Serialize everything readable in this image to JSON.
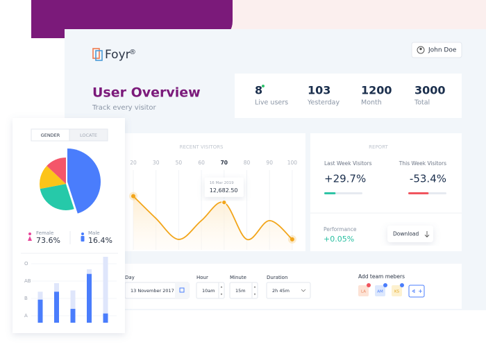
{
  "header": {
    "logo": "Foyr",
    "logo_mark": "®",
    "user": "John Doe"
  },
  "overview": {
    "title": "User Overview",
    "subtitle": "Track every visitor"
  },
  "stats": [
    {
      "value": 8,
      "label": "Live users"
    },
    {
      "value": 103,
      "label": "Yesterday"
    },
    {
      "value": 1200,
      "label": "Month"
    },
    {
      "value": 3000,
      "label": "Total"
    }
  ],
  "recent_visitors": {
    "type": "line",
    "title": "RECENT VISITORS",
    "categories": [
      "20",
      "30",
      "50",
      "60",
      "70",
      "80",
      "90",
      "100"
    ],
    "highlight": "70",
    "values": [
      14360,
      8390,
      2800,
      7830,
      12682.5,
      2800,
      7830,
      2800
    ],
    "value_labels": [
      null,
      null,
      null,
      null,
      "12,682.50",
      null,
      null,
      null
    ],
    "tooltip_date": "16 Mar 2019",
    "color": "#f2a51a",
    "ylim": [
      0,
      26000
    ]
  },
  "report": {
    "title": "REPORT",
    "items": [
      {
        "label": "Last Week Visitors",
        "value": "+29.7%",
        "bar": 29.7,
        "color": "#2ec4a5"
      },
      {
        "label": "This Week Visitors",
        "value": "-53.4%",
        "bar": 53.4,
        "color": "#f0545e"
      }
    ],
    "bar_lim": [
      0,
      100
    ],
    "performance": {
      "label": "Performance",
      "value": "+0.05%"
    },
    "download": "Download"
  },
  "form": {
    "fields": [
      {
        "label": "Day",
        "value": "13 November 2017"
      },
      {
        "label": "Hour",
        "value": "10am"
      },
      {
        "label": "Minute",
        "value": "15m"
      },
      {
        "label": "Duration",
        "value": "2h 45m"
      }
    ],
    "team": {
      "label": "Add team mebers",
      "members": [
        "LA",
        "AM",
        "KS"
      ]
    }
  },
  "side": {
    "tabs": [
      "GENDER",
      "LOCATE"
    ],
    "gender": {
      "type": "pie",
      "series": [
        {
          "color": "#4a7dfc",
          "values": [
            45
          ]
        },
        {
          "color": "#26c9a9",
          "values": [
            27
          ]
        },
        {
          "color": "#fcc419",
          "values": [
            15
          ]
        },
        {
          "color": "#f4566a",
          "values": [
            13
          ]
        }
      ]
    },
    "female": {
      "label": "Female",
      "value": "73.6%"
    },
    "male": {
      "label": "Male",
      "value": "16.4%"
    },
    "groups": {
      "type": "bar",
      "ylabels": [
        "O",
        "AB",
        "B",
        "A"
      ],
      "totals": [
        47,
        60,
        49,
        81,
        100
      ],
      "values": [
        35,
        47,
        21,
        74,
        14
      ],
      "total_color": "#dfe6fb",
      "color": "#4a7dfc",
      "ylim": [
        0,
        100
      ]
    }
  }
}
